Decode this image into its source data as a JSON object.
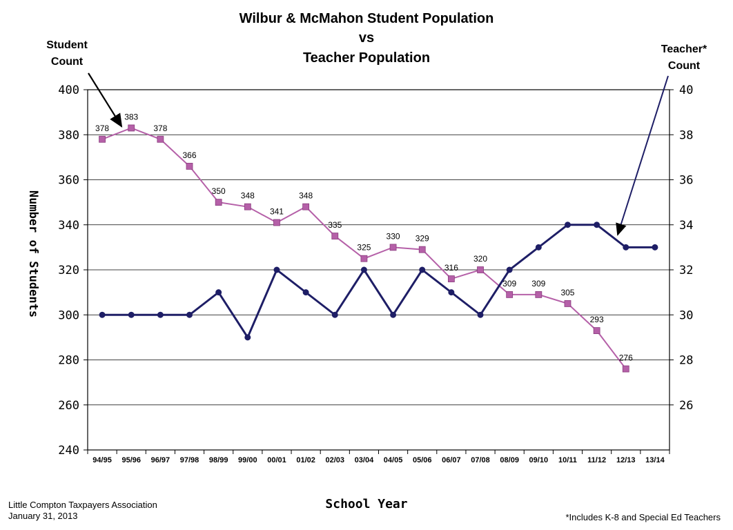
{
  "chart_data": {
    "type": "line",
    "title_lines": [
      "Wilbur & McMahon Student Population",
      "vs",
      "Teacher Population"
    ],
    "xlabel": "School Year",
    "ylabel": "Number of Students",
    "y2label": "",
    "categories": [
      "94/95",
      "95/96",
      "96/97",
      "97/98",
      "98/99",
      "99/00",
      "00/01",
      "01/02",
      "02/03",
      "03/04",
      "04/05",
      "05/06",
      "06/07",
      "07/08",
      "08/09",
      "09/10",
      "10/11",
      "11/12",
      "12/13",
      "13/14"
    ],
    "ylim": [
      240,
      400
    ],
    "yticks": [
      240,
      260,
      280,
      300,
      320,
      340,
      360,
      380,
      400
    ],
    "y2lim": [
      24,
      40
    ],
    "y2ticks": [
      26,
      28,
      30,
      32,
      34,
      36,
      38,
      40
    ],
    "grid": true,
    "series": [
      {
        "name": "Student Count",
        "axis": "left",
        "color": "#b560a8",
        "marker": "square",
        "values": [
          378,
          383,
          378,
          366,
          350,
          348,
          341,
          348,
          335,
          325,
          330,
          329,
          316,
          320,
          309,
          309,
          305,
          293,
          276,
          null
        ]
      },
      {
        "name": "Teacher* Count",
        "axis": "right",
        "color": "#1e1e66",
        "marker": "circle",
        "values": [
          30,
          30,
          30,
          30,
          31,
          29,
          32,
          31,
          30,
          32,
          30,
          32,
          31,
          30,
          32,
          33,
          34,
          34,
          33,
          33
        ]
      }
    ],
    "annotations": {
      "student_callout": [
        "Student",
        "Count"
      ],
      "teacher_callout": [
        "Teacher*",
        "Count"
      ]
    }
  },
  "footer": {
    "org": "Little Compton Taxpayers Association",
    "date": "January 31, 2013",
    "note": "*Includes K-8 and Special Ed Teachers"
  }
}
